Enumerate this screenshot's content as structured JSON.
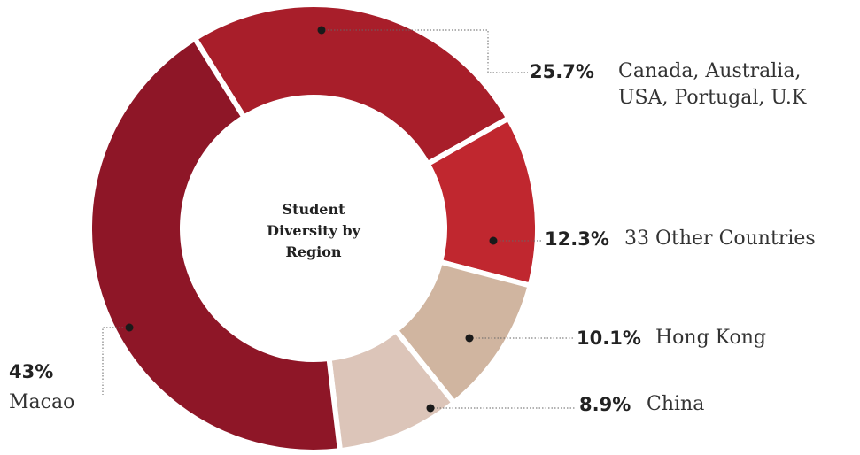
{
  "chart_data": {
    "type": "donut",
    "title": "Student Diversity by Region",
    "categories": [
      "Canada, Australia, USA, Portugal, U.K",
      "33 Other Countries",
      "Hong Kong",
      "China",
      "Macao"
    ],
    "values": [
      25.7,
      12.3,
      10.1,
      8.9,
      43
    ],
    "value_labels": [
      "25.7%",
      "12.3%",
      "10.1%",
      "8.9%",
      "43%"
    ],
    "colors": [
      "#a81e2a",
      "#c0272f",
      "#d0b5a0",
      "#dcc5b9",
      "#8e1627"
    ]
  }
}
